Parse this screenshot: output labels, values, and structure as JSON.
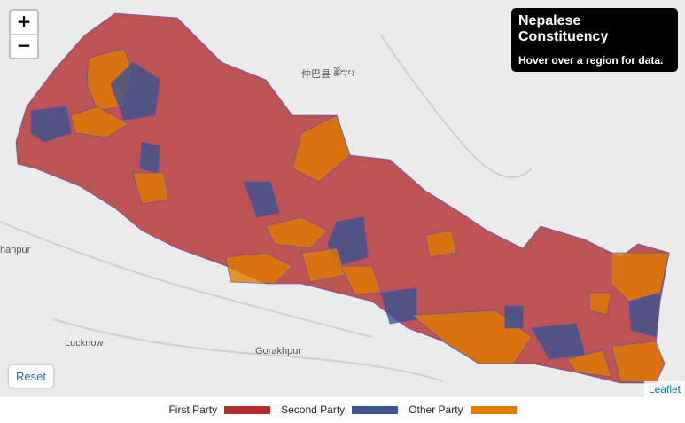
{
  "zoom": {
    "in": "+",
    "out": "−"
  },
  "info": {
    "title": "Nepalese Constituency",
    "text": "Hover over a region for data."
  },
  "places": [
    "仲巴县 ཚོང་པ",
    "hanpur",
    "Lucknow",
    "Gorakhpur"
  ],
  "reset": "Reset",
  "attribution": "Leaflet",
  "legend": [
    {
      "name": "First Party",
      "color": "#b22d2d"
    },
    {
      "name": "Second Party",
      "color": "#3a5494"
    },
    {
      "name": "Other Party",
      "color": "#e07b00"
    }
  ]
}
